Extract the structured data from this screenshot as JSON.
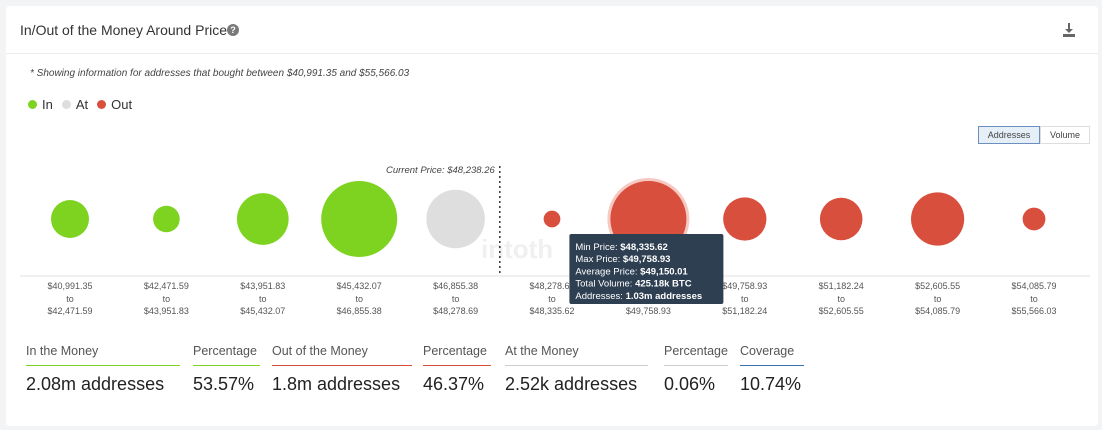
{
  "header": {
    "title": "In/Out of the Money Around Price",
    "help_glyph": "?"
  },
  "note": "* Showing information for addresses that bought between $40,991.35 and $55,566.03",
  "legend": [
    {
      "label": "In",
      "color": "#7ed321"
    },
    {
      "label": "At",
      "color": "#dedede"
    },
    {
      "label": "Out",
      "color": "#d94f3d"
    }
  ],
  "toggles": {
    "addresses": "Addresses",
    "volume": "Volume",
    "active": "addresses"
  },
  "watermark": "intoth",
  "chart_data": {
    "type": "bubble",
    "current_price_label": "Current Price: $48,238.26",
    "buckets": [
      {
        "from": "$40,991.35",
        "to": "$42,471.59",
        "status": "in",
        "size": 0.5
      },
      {
        "from": "$42,471.59",
        "to": "$43,951.83",
        "status": "in",
        "size": 0.35
      },
      {
        "from": "$43,951.83",
        "to": "$45,432.07",
        "status": "in",
        "size": 0.68
      },
      {
        "from": "$45,432.07",
        "to": "$46,855.38",
        "status": "in",
        "size": 1.0
      },
      {
        "from": "$46,855.38",
        "to": "$48,278.69",
        "status": "at",
        "size": 0.77
      },
      {
        "from": "$48,278.69",
        "to": "$48,335.62",
        "status": "out",
        "size": 0.22
      },
      {
        "from": "$48,335.62",
        "to": "$49,758.93",
        "status": "out",
        "size": 1.0,
        "highlight": true
      },
      {
        "from": "$49,758.93",
        "to": "$51,182.24",
        "status": "out",
        "size": 0.57
      },
      {
        "from": "$51,182.24",
        "to": "$52,605.55",
        "status": "out",
        "size": 0.56
      },
      {
        "from": "$52,605.55",
        "to": "$54,085.79",
        "status": "out",
        "size": 0.7
      },
      {
        "from": "$54,085.79",
        "to": "$55,566.03",
        "status": "out",
        "size": 0.3
      }
    ],
    "current_price_after_bucket": 4,
    "tooltip": {
      "bucket": 6,
      "lines": [
        {
          "label": "Min Price: ",
          "value": "$48,335.62"
        },
        {
          "label": "Max Price: ",
          "value": "$49,758.93"
        },
        {
          "label": "Average Price: ",
          "value": "$49,150.01"
        },
        {
          "label": "Total Volume: ",
          "value": "425.18k BTC"
        },
        {
          "label": "Addresses: ",
          "value": "1.03m addresses"
        }
      ]
    },
    "colors": {
      "in": "#7ed321",
      "at": "#dedede",
      "out": "#d94f3d"
    }
  },
  "stats": [
    {
      "label": "In the Money",
      "value": "2.08m addresses",
      "color": "#7ed321"
    },
    {
      "label": "Percentage",
      "value": "53.57%",
      "color": "#7ed321"
    },
    {
      "label": "Out of the Money",
      "value": "1.8m addresses",
      "color": "#d94f3d"
    },
    {
      "label": "Percentage",
      "value": "46.37%",
      "color": "#d94f3d"
    },
    {
      "label": "At the Money",
      "value": "2.52k addresses",
      "color": "#cccccc"
    },
    {
      "label": "Percentage",
      "value": "0.06%",
      "color": "#cccccc"
    },
    {
      "label": "Coverage",
      "value": "10.74%",
      "color": "#3b6fb6"
    }
  ]
}
